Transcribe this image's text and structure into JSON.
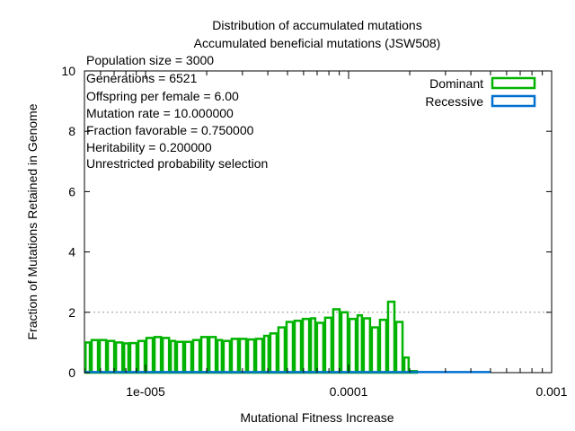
{
  "chart_data": {
    "type": "bar",
    "title": "Distribution of accumulated mutations",
    "subtitle": "Accumulated beneficial mutations (JSW508)",
    "xlabel": "Mutational Fitness Increase",
    "ylabel": "Fraction of Mutations Retained in Genome",
    "x_scale": "log",
    "xlim": [
      5e-06,
      0.001
    ],
    "ylim": [
      0,
      10
    ],
    "x_tick_labels": [
      "1e-005",
      "0.0001",
      "0.001"
    ],
    "x_tick_values": [
      1e-05,
      0.0001,
      0.001
    ],
    "y_ticks": [
      0,
      2,
      4,
      6,
      8,
      10
    ],
    "grid": "horizontal dashed at y=2",
    "legend_position": "top-right",
    "annotations": [
      "Population size = 3000",
      "Generations = 6521",
      "Offspring per female = 6.00",
      "Mutation rate = 10.000000",
      "Fraction favorable = 0.750000",
      "Heritability = 0.200000",
      "Unrestricted probability selection"
    ],
    "series": [
      {
        "name": "Dominant",
        "color": "#00b300",
        "bin_edges_log10": [
          -5.3,
          -5.27,
          -5.23,
          -5.19,
          -5.15,
          -5.11,
          -5.08,
          -5.04,
          -5.0,
          -4.96,
          -4.92,
          -4.88,
          -4.85,
          -4.81,
          -4.77,
          -4.73,
          -4.69,
          -4.65,
          -4.62,
          -4.58,
          -4.54,
          -4.5,
          -4.46,
          -4.42,
          -4.39,
          -4.35,
          -4.31,
          -4.27,
          -4.23,
          -4.19,
          -4.16,
          -4.12,
          -4.08,
          -4.04,
          -4.0,
          -3.96,
          -3.93,
          -3.89,
          -3.85,
          -3.81,
          -3.77,
          -3.73,
          -3.7,
          -3.66,
          -3.62,
          -3.58,
          -3.54,
          -3.5,
          -3.47,
          -3.43
        ],
        "values": [
          1.0,
          1.08,
          1.08,
          1.05,
          1.0,
          0.97,
          0.98,
          1.05,
          1.15,
          1.18,
          1.15,
          1.05,
          1.02,
          1.02,
          1.08,
          1.18,
          1.18,
          1.08,
          1.05,
          1.12,
          1.12,
          1.1,
          1.12,
          1.22,
          1.3,
          1.5,
          1.68,
          1.72,
          1.78,
          1.8,
          1.65,
          1.82,
          2.1,
          2.0,
          1.78,
          1.9,
          1.8,
          1.5,
          1.75,
          2.35,
          1.68,
          0.5,
          0.05,
          0,
          0,
          0,
          0,
          0,
          0
        ]
      },
      {
        "name": "Recessive",
        "color": "#0070d0",
        "x_range_log10": [
          -5.3,
          -3.3
        ],
        "values_note": "near zero across range",
        "value": 0.02
      }
    ]
  }
}
